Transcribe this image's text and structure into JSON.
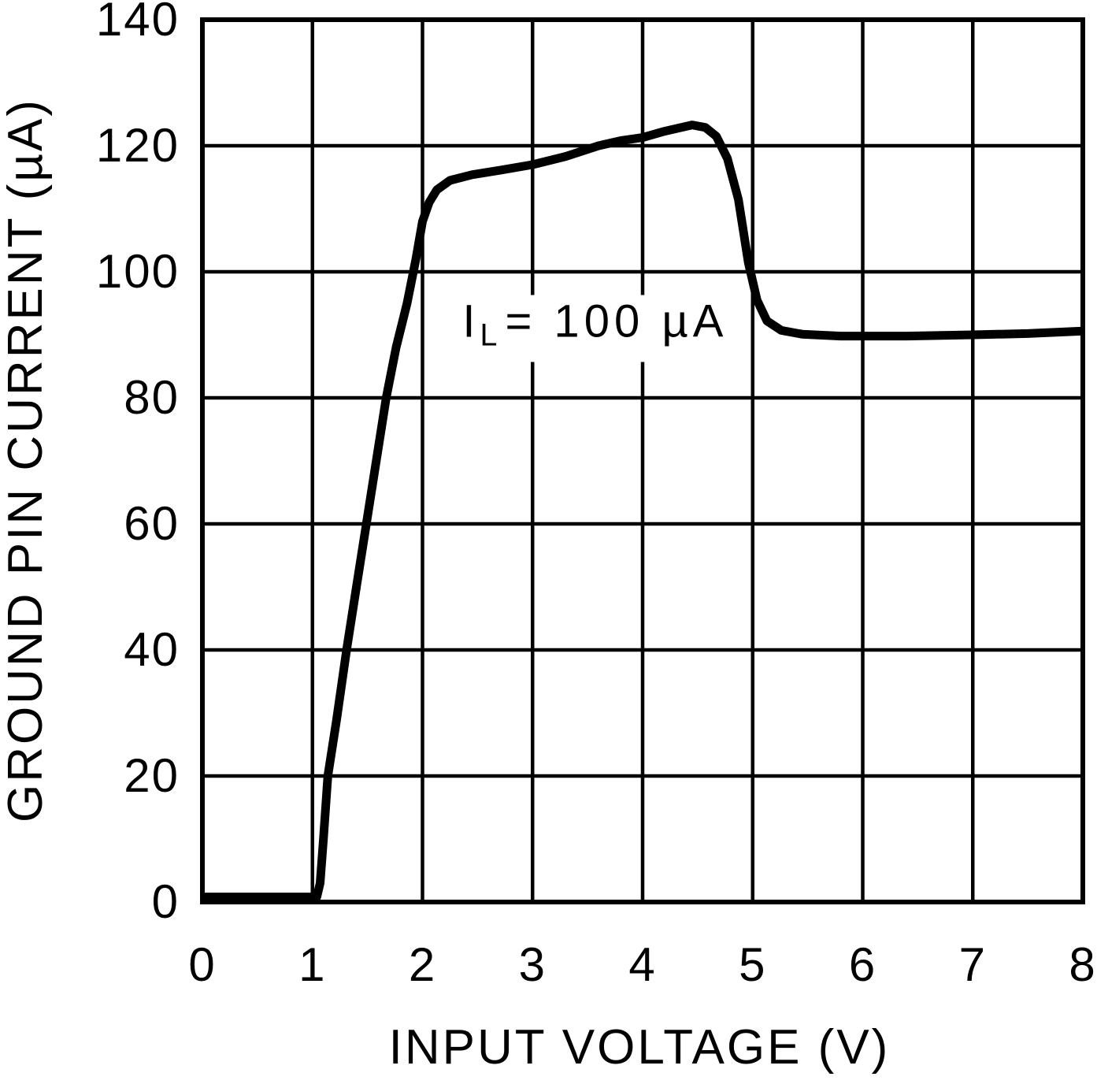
{
  "figure": {
    "background_color": "#ffffff",
    "ink_color": "#000000"
  },
  "chart_data": {
    "type": "line",
    "title": "",
    "xlabel": "INPUT VOLTAGE (V)",
    "ylabel": "GROUND PIN CURRENT (µA)",
    "xlim": [
      0,
      8
    ],
    "ylim": [
      0,
      140
    ],
    "x_ticks": [
      "0",
      "1",
      "2",
      "3",
      "4",
      "5",
      "6",
      "7",
      "8"
    ],
    "x_tick_values": [
      0,
      1,
      2,
      3,
      4,
      5,
      6,
      7,
      8
    ],
    "y_ticks": [
      "0",
      "20",
      "40",
      "60",
      "80",
      "100",
      "120",
      "140"
    ],
    "y_tick_values": [
      0,
      20,
      40,
      60,
      80,
      100,
      120,
      140
    ],
    "grid": "on",
    "legend": "none",
    "annotation": {
      "symbol": "I",
      "subscript": "L",
      "rest": "= 100 µA",
      "x": 3.57,
      "y": 91
    },
    "series": [
      {
        "name": "ground-pin-current",
        "color": "#000000",
        "points": [
          [
            0,
            0.8
          ],
          [
            1.04,
            0.8
          ],
          [
            1.07,
            3
          ],
          [
            1.1,
            10
          ],
          [
            1.14,
            20
          ],
          [
            1.22,
            29
          ],
          [
            1.31,
            40
          ],
          [
            1.4,
            50
          ],
          [
            1.49,
            60
          ],
          [
            1.58,
            70
          ],
          [
            1.67,
            80
          ],
          [
            1.76,
            88
          ],
          [
            1.86,
            95
          ],
          [
            1.94,
            102
          ],
          [
            2.0,
            108
          ],
          [
            2.06,
            111
          ],
          [
            2.13,
            113
          ],
          [
            2.25,
            114.5
          ],
          [
            2.45,
            115.4
          ],
          [
            2.7,
            116.1
          ],
          [
            3.0,
            117.0
          ],
          [
            3.3,
            118.3
          ],
          [
            3.6,
            120.0
          ],
          [
            3.8,
            120.8
          ],
          [
            4.0,
            121.3
          ],
          [
            4.2,
            122.3
          ],
          [
            4.45,
            123.3
          ],
          [
            4.57,
            122.9
          ],
          [
            4.67,
            121.5
          ],
          [
            4.77,
            118.0
          ],
          [
            4.87,
            111.5
          ],
          [
            4.96,
            101.5
          ],
          [
            5.04,
            95.5
          ],
          [
            5.13,
            92.2
          ],
          [
            5.26,
            90.7
          ],
          [
            5.45,
            90.1
          ],
          [
            5.8,
            89.8
          ],
          [
            6.4,
            89.8
          ],
          [
            7.0,
            90.0
          ],
          [
            7.5,
            90.2
          ],
          [
            8.0,
            90.6
          ]
        ]
      }
    ]
  }
}
